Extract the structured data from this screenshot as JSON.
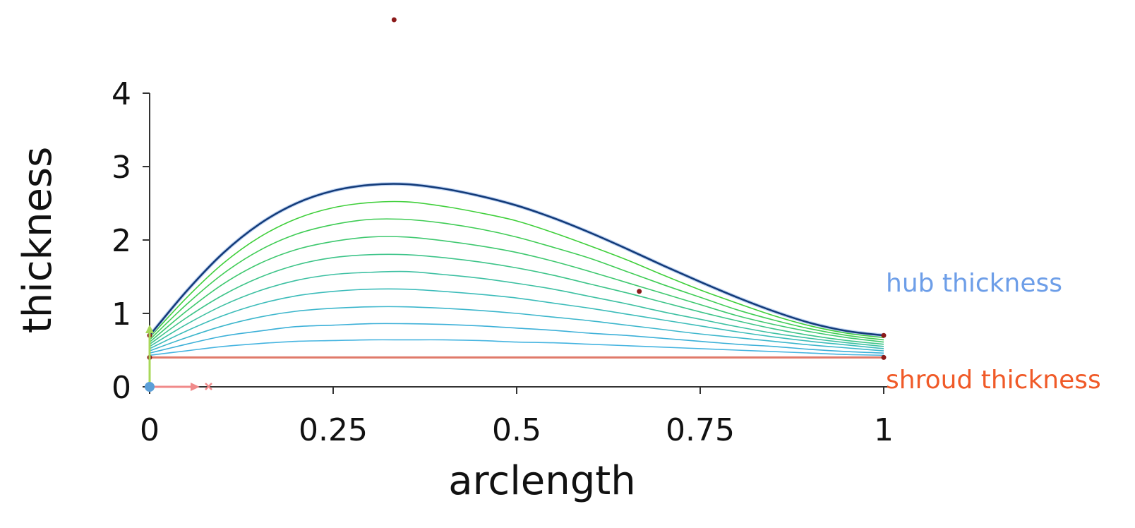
{
  "chart_data": {
    "type": "line",
    "xlabel": "arclength",
    "ylabel": "thickness",
    "xlim": [
      0,
      1
    ],
    "ylim": [
      0,
      4
    ],
    "x_ticks": [
      "0",
      "0.25",
      "0.5",
      "0.75",
      "1"
    ],
    "y_ticks": [
      "0",
      "1",
      "2",
      "3",
      "4"
    ],
    "grid": false,
    "legend": "none",
    "x": [
      0,
      0.05,
      0.1,
      0.15,
      0.2,
      0.25,
      0.3,
      0.35,
      0.4,
      0.45,
      0.5,
      0.55,
      0.6,
      0.65,
      0.7,
      0.75,
      0.8,
      0.85,
      0.9,
      0.95,
      1
    ],
    "series": [
      {
        "name": "hub thickness",
        "color": "#123a78",
        "labelColor": "#6d9ee8",
        "values": [
          0.7,
          1.3,
          1.82,
          2.22,
          2.5,
          2.67,
          2.75,
          2.76,
          2.7,
          2.6,
          2.47,
          2.3,
          2.1,
          1.88,
          1.65,
          1.43,
          1.22,
          1.03,
          0.87,
          0.76,
          0.7
        ]
      },
      {
        "color": "#3fcf3a",
        "values": [
          0.67,
          1.21,
          1.68,
          2.04,
          2.29,
          2.44,
          2.51,
          2.52,
          2.46,
          2.37,
          2.26,
          2.1,
          1.92,
          1.73,
          1.52,
          1.32,
          1.14,
          0.97,
          0.83,
          0.73,
          0.67
        ]
      },
      {
        "color": "#3fcc55",
        "values": [
          0.64,
          1.12,
          1.54,
          1.86,
          2.08,
          2.21,
          2.28,
          2.28,
          2.23,
          2.15,
          2.04,
          1.9,
          1.75,
          1.57,
          1.39,
          1.22,
          1.05,
          0.91,
          0.79,
          0.7,
          0.64
        ]
      },
      {
        "color": "#3ec86f",
        "values": [
          0.61,
          1.03,
          1.4,
          1.68,
          1.87,
          1.98,
          2.04,
          2.04,
          1.99,
          1.92,
          1.83,
          1.71,
          1.57,
          1.42,
          1.27,
          1.12,
          0.97,
          0.85,
          0.75,
          0.67,
          0.61
        ]
      },
      {
        "color": "#3dc489",
        "values": [
          0.58,
          0.94,
          1.25,
          1.49,
          1.66,
          1.76,
          1.8,
          1.8,
          1.76,
          1.7,
          1.62,
          1.52,
          1.4,
          1.28,
          1.15,
          1.02,
          0.9,
          0.79,
          0.7,
          0.63,
          0.58
        ]
      },
      {
        "color": "#3dc0a2",
        "values": [
          0.55,
          0.85,
          1.11,
          1.31,
          1.45,
          1.53,
          1.56,
          1.57,
          1.53,
          1.48,
          1.41,
          1.33,
          1.23,
          1.13,
          1.02,
          0.92,
          0.82,
          0.73,
          0.66,
          0.6,
          0.55
        ]
      },
      {
        "color": "#3cbcba",
        "values": [
          0.52,
          0.76,
          0.97,
          1.13,
          1.24,
          1.3,
          1.33,
          1.33,
          1.3,
          1.26,
          1.21,
          1.14,
          1.07,
          0.99,
          0.91,
          0.83,
          0.75,
          0.68,
          0.62,
          0.57,
          0.52
        ]
      },
      {
        "color": "#3cb6cc",
        "values": [
          0.49,
          0.67,
          0.83,
          0.95,
          1.03,
          1.07,
          1.09,
          1.09,
          1.07,
          1.04,
          1.0,
          0.95,
          0.9,
          0.84,
          0.78,
          0.72,
          0.67,
          0.62,
          0.57,
          0.53,
          0.49
        ]
      },
      {
        "color": "#3cb0d8",
        "values": [
          0.46,
          0.58,
          0.69,
          0.76,
          0.82,
          0.84,
          0.86,
          0.86,
          0.85,
          0.83,
          0.8,
          0.77,
          0.73,
          0.7,
          0.66,
          0.62,
          0.58,
          0.55,
          0.51,
          0.48,
          0.46
        ]
      },
      {
        "color": "#45b4e0",
        "values": [
          0.43,
          0.49,
          0.55,
          0.59,
          0.62,
          0.63,
          0.64,
          0.64,
          0.64,
          0.63,
          0.61,
          0.6,
          0.58,
          0.56,
          0.54,
          0.52,
          0.5,
          0.48,
          0.46,
          0.44,
          0.43
        ]
      },
      {
        "name": "shroud thickness",
        "color": "#e07a6a",
        "labelColor": "#f05a28",
        "values": [
          0.4,
          0.4,
          0.4,
          0.4,
          0.4,
          0.4,
          0.4,
          0.4,
          0.4,
          0.4,
          0.4,
          0.4,
          0.4,
          0.4,
          0.4,
          0.4,
          0.4,
          0.4,
          0.4,
          0.4,
          0.4
        ]
      }
    ],
    "control_points": [
      {
        "x": 0,
        "y": 0.7
      },
      {
        "x": 0.333,
        "y": 5
      },
      {
        "x": 0.667,
        "y": 1.3
      },
      {
        "x": 1,
        "y": 0.7
      },
      {
        "x": 0,
        "y": 0.4
      },
      {
        "x": 1,
        "y": 0.4
      }
    ],
    "control_point_color": "#8b1a1a"
  }
}
